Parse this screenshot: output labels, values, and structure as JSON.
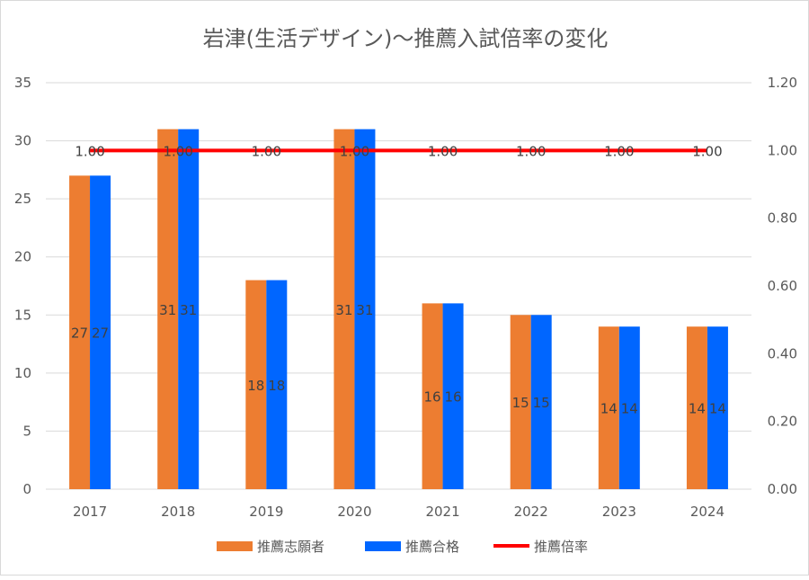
{
  "chart_data": {
    "type": "bar+line",
    "title": "岩津(生活デザイン)〜推薦入試倍率の変化",
    "categories": [
      "2017",
      "2018",
      "2019",
      "2020",
      "2021",
      "2022",
      "2023",
      "2024"
    ],
    "series": [
      {
        "name": "推薦志願者",
        "type": "bar",
        "axis": "left",
        "color": "#ed7d31",
        "values": [
          27,
          31,
          18,
          31,
          16,
          15,
          14,
          14
        ]
      },
      {
        "name": "推薦合格",
        "type": "bar",
        "axis": "left",
        "color": "#0066ff",
        "values": [
          27,
          31,
          18,
          31,
          16,
          15,
          14,
          14
        ]
      },
      {
        "name": "推薦倍率",
        "type": "line",
        "axis": "right",
        "color": "#ff0000",
        "values": [
          1.0,
          1.0,
          1.0,
          1.0,
          1.0,
          1.0,
          1.0,
          1.0
        ]
      }
    ],
    "y_left": {
      "min": 0,
      "max": 35,
      "step": 5,
      "ticks": [
        "0",
        "5",
        "10",
        "15",
        "20",
        "25",
        "30",
        "35"
      ]
    },
    "y_right": {
      "min": 0,
      "max": 1.2,
      "step": 0.2,
      "ticks": [
        "0.00",
        "0.20",
        "0.40",
        "0.60",
        "0.80",
        "1.00",
        "1.20"
      ]
    },
    "grid": true,
    "legend": "bottom",
    "xlabel": "",
    "ylabel": ""
  }
}
